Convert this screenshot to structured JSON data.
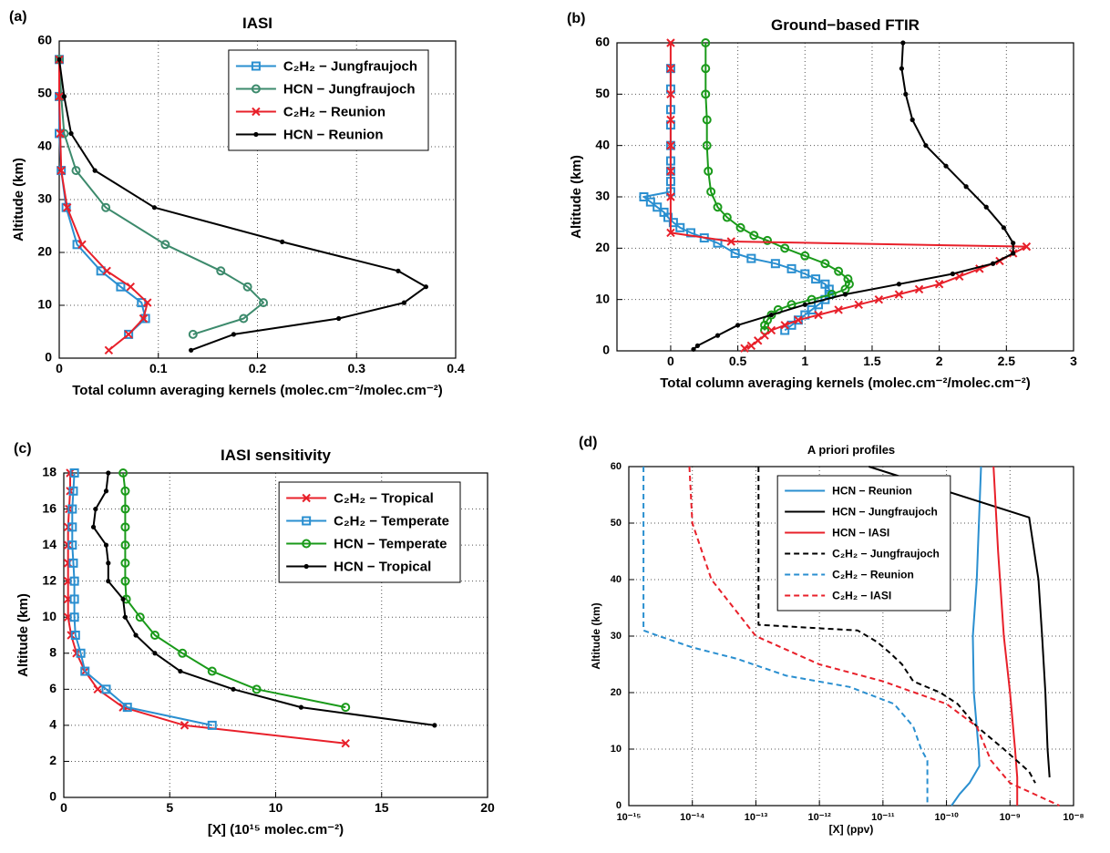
{
  "chart_data": [
    {
      "type": "line",
      "panel": "(a)",
      "title": "IASI",
      "xlabel": "Total column averaging kernels (molec.cm⁻²/molec.cm⁻²)",
      "ylabel": "Altitude (km)",
      "xlim": [
        0,
        0.4
      ],
      "xticks": [
        0,
        0.1,
        0.2,
        0.3,
        0.4
      ],
      "ylim": [
        0,
        60
      ],
      "yticks": [
        0,
        10,
        20,
        30,
        40,
        50,
        60
      ],
      "grid": true,
      "legend": "upper right",
      "series": [
        {
          "name": "C₂H₂ − Jungfraujoch",
          "color": "#2a8fd0",
          "marker": "square",
          "x": [
            0,
            0,
            0,
            0.002,
            0.007,
            0.018,
            0.042,
            0.062,
            0.083,
            0.087,
            0.07
          ],
          "y": [
            56.5,
            49.5,
            42.5,
            35.5,
            28.5,
            21.5,
            16.5,
            13.5,
            10.5,
            7.5,
            4.5
          ]
        },
        {
          "name": "HCN − Jungfraujoch",
          "color": "#3c8a6c",
          "marker": "circle",
          "x": [
            0,
            0.002,
            0.005,
            0.017,
            0.047,
            0.107,
            0.163,
            0.19,
            0.206,
            0.186,
            0.135
          ],
          "y": [
            56.5,
            49.5,
            42.5,
            35.5,
            28.5,
            21.5,
            16.5,
            13.5,
            10.5,
            7.5,
            4.5
          ]
        },
        {
          "name": "C₂H₂ − Reunion",
          "color": "#e8202a",
          "marker": "x",
          "x": [
            0,
            0,
            0.001,
            0.002,
            0.008,
            0.023,
            0.048,
            0.072,
            0.089,
            0.085,
            0.07,
            0.05
          ],
          "y": [
            56.5,
            49.5,
            42.5,
            35.5,
            28.5,
            21.5,
            16.5,
            13.5,
            10.5,
            7.5,
            4.5,
            1.5
          ]
        },
        {
          "name": "HCN − Reunion",
          "color": "#000000",
          "marker": "dot",
          "x": [
            0,
            0.005,
            0.012,
            0.036,
            0.096,
            0.225,
            0.342,
            0.37,
            0.348,
            0.282,
            0.176,
            0.133
          ],
          "y": [
            56.5,
            49.5,
            42.5,
            35.5,
            28.5,
            22,
            16.5,
            13.5,
            10.5,
            7.5,
            4.5,
            1.5
          ]
        }
      ]
    },
    {
      "type": "line",
      "panel": "(b)",
      "title": "Ground−based FTIR",
      "xlabel": "Total column averaging kernels (molec.cm⁻²/molec.cm⁻²)",
      "ylabel": "Altitude (km)",
      "xlim": [
        -0.4,
        3
      ],
      "xticks": [
        0,
        0.5,
        1,
        1.5,
        2,
        2.5,
        3
      ],
      "ylim": [
        0,
        60
      ],
      "yticks": [
        0,
        10,
        20,
        30,
        40,
        50,
        60
      ],
      "grid": true,
      "series": [
        {
          "color": "#2a8fd0",
          "marker": "square",
          "x": [
            0,
            0,
            0,
            0,
            0,
            0,
            0,
            0,
            0,
            -0.2,
            -0.15,
            -0.1,
            -0.05,
            -0.02,
            0.02,
            0.07,
            0.15,
            0.25,
            0.35,
            0.48,
            0.6,
            0.78,
            0.9,
            1.0,
            1.08,
            1.15,
            1.18,
            1.18,
            1.15,
            1.1,
            1.05,
            1.0,
            0.95,
            0.9,
            0.85
          ],
          "y": [
            55,
            51,
            47,
            44,
            40,
            37,
            35,
            33,
            31,
            30,
            29,
            28,
            27,
            26,
            25,
            24,
            23,
            22,
            21,
            19,
            18,
            17,
            16,
            15,
            14,
            13,
            12,
            11,
            10,
            9,
            8,
            7,
            6,
            5,
            4
          ]
        },
        {
          "color": "#1a9a1a",
          "marker": "circle",
          "x": [
            0.26,
            0.26,
            0.26,
            0.27,
            0.27,
            0.28,
            0.3,
            0.35,
            0.42,
            0.52,
            0.62,
            0.72,
            0.85,
            1.0,
            1.15,
            1.25,
            1.32,
            1.33,
            1.3,
            1.2,
            1.05,
            0.9,
            0.8,
            0.75,
            0.72,
            0.7,
            0.7
          ],
          "y": [
            60,
            55,
            50,
            45,
            40,
            35,
            31,
            28,
            26,
            24,
            22.5,
            21.5,
            20,
            18.5,
            17,
            15.5,
            14,
            13,
            12,
            11,
            10,
            9,
            8,
            7,
            6,
            5,
            4
          ]
        },
        {
          "color": "#e8202a",
          "marker": "x",
          "x": [
            0,
            0,
            0,
            0,
            0,
            0,
            0,
            0,
            0.45,
            2.65,
            2.55,
            2.45,
            2.3,
            2.15,
            2.0,
            1.85,
            1.7,
            1.55,
            1.4,
            1.25,
            1.1,
            0.95,
            0.85,
            0.75,
            0.7,
            0.65,
            0.6,
            0.55
          ],
          "y": [
            60,
            55,
            50,
            45,
            40,
            35,
            30,
            23,
            21.3,
            20.3,
            19,
            17.5,
            16,
            14.5,
            13,
            12,
            11,
            10,
            9,
            8,
            7,
            6,
            5,
            4,
            3,
            2,
            1,
            0.5
          ]
        },
        {
          "color": "#000000",
          "marker": "dot",
          "x": [
            1.73,
            1.72,
            1.75,
            1.8,
            1.9,
            2.05,
            2.2,
            2.35,
            2.48,
            2.55,
            2.55,
            2.4,
            2.1,
            1.7,
            1.3,
            1.0,
            0.75,
            0.5,
            0.35,
            0.2,
            0.17
          ],
          "y": [
            60,
            55,
            50,
            45,
            40,
            36,
            32,
            28,
            24,
            21,
            19,
            17,
            15,
            13,
            11,
            9,
            7,
            5,
            3,
            1,
            0.3
          ]
        }
      ]
    },
    {
      "type": "line",
      "panel": "(c)",
      "title": "IASI sensitivity",
      "xlabel": "[X] (10¹⁵ molec.cm⁻²)",
      "ylabel": "Altitude (km)",
      "xlim": [
        0,
        20
      ],
      "xticks": [
        0,
        5,
        10,
        15,
        20
      ],
      "ylim": [
        0,
        18
      ],
      "yticks": [
        0,
        2,
        4,
        6,
        8,
        10,
        12,
        14,
        16,
        18
      ],
      "grid": true,
      "legend": "upper right",
      "series": [
        {
          "name": "C₂H₂ − Tropical",
          "color": "#e8202a",
          "marker": "x",
          "x": [
            0.3,
            0.3,
            0.25,
            0.2,
            0.2,
            0.2,
            0.2,
            0.2,
            0.2,
            0.35,
            0.6,
            1.0,
            1.6,
            2.8,
            5.7,
            13.3
          ],
          "y": [
            18,
            17,
            16,
            15,
            14,
            13,
            12,
            11,
            10,
            9,
            8,
            7,
            6,
            5,
            4,
            3
          ]
        },
        {
          "name": "C₂H₂ − Temperate",
          "color": "#2a8fd0",
          "marker": "square",
          "x": [
            0.5,
            0.45,
            0.4,
            0.4,
            0.4,
            0.45,
            0.5,
            0.5,
            0.5,
            0.55,
            0.8,
            1.0,
            2.0,
            3.0,
            7.0
          ],
          "y": [
            18,
            17,
            16,
            15,
            14,
            13,
            12,
            11,
            10,
            9,
            8,
            7,
            6,
            5,
            4
          ]
        },
        {
          "name": "HCN − Temperate",
          "color": "#1a9a1a",
          "marker": "circle",
          "x": [
            2.8,
            2.9,
            2.9,
            2.9,
            2.9,
            2.9,
            2.9,
            2.95,
            3.6,
            4.3,
            5.6,
            7.0,
            9.1,
            13.3
          ],
          "y": [
            18,
            17,
            16,
            15,
            14,
            13,
            12,
            11,
            10,
            9,
            8,
            7,
            6,
            5
          ]
        },
        {
          "name": "HCN − Tropical",
          "color": "#000000",
          "marker": "dot",
          "x": [
            2.1,
            2.0,
            1.5,
            1.4,
            2.0,
            2.1,
            2.1,
            2.8,
            2.9,
            3.4,
            4.3,
            5.5,
            8.0,
            11.2,
            17.5
          ],
          "y": [
            18,
            17,
            16,
            15,
            14,
            13,
            12,
            11,
            10,
            9,
            8,
            7,
            6,
            5,
            4
          ]
        }
      ]
    },
    {
      "type": "line",
      "panel": "(d)",
      "title": "A priori profiles",
      "xlabel": "[X] (ppv)",
      "ylabel": "Altitude (km)",
      "xscale": "log",
      "xlim": [
        1e-15,
        1e-08
      ],
      "xticks": [
        {
          "value": 1e-15,
          "label": "10⁻¹⁵"
        },
        {
          "value": 1e-14,
          "label": "10⁻¹⁴"
        },
        {
          "value": 1e-13,
          "label": "10⁻¹³"
        },
        {
          "value": 1e-12,
          "label": "10⁻¹²"
        },
        {
          "value": 1e-11,
          "label": "10⁻¹¹"
        },
        {
          "value": 1e-10,
          "label": "10⁻¹⁰"
        },
        {
          "value": 1e-09,
          "label": "10⁻⁹"
        },
        {
          "value": 1e-08,
          "label": "10⁻⁸"
        }
      ],
      "ylim": [
        0,
        60
      ],
      "yticks": [
        0,
        10,
        20,
        30,
        40,
        50,
        60
      ],
      "grid": true,
      "legend": "upper center",
      "series": [
        {
          "name": "HCN − Reunion",
          "color": "#2a8fd0",
          "linestyle": "solid",
          "x": [
            3.5e-10,
            3e-10,
            2.6e-10,
            2.7e-10,
            3.2e-10,
            3.3e-10,
            2.3e-10,
            1.6e-10,
            1.2e-10
          ],
          "y": [
            60,
            40,
            30,
            20,
            10,
            7,
            4,
            2,
            0
          ]
        },
        {
          "name": "HCN − Jungfraujoch",
          "color": "#000000",
          "linestyle": "solid",
          "x": [
            6e-12,
            2e-09,
            2.8e-09,
            3.2e-09,
            3.6e-09,
            3.9e-09,
            4.2e-09
          ],
          "y": [
            60,
            51,
            40,
            30,
            20,
            10,
            5
          ]
        },
        {
          "name": "HCN − IASI",
          "color": "#e8202a",
          "linestyle": "solid",
          "x": [
            5.5e-10,
            6.5e-10,
            8e-10,
            1e-09,
            1.2e-09,
            1.3e-09,
            1.3e-09
          ],
          "y": [
            60,
            45,
            30,
            20,
            10,
            5,
            0
          ]
        },
        {
          "name": "C₂H₂ − Jungfraujoch",
          "color": "#000000",
          "linestyle": "dashed",
          "x": [
            1.1e-13,
            1.1e-13,
            4e-12,
            8e-12,
            1.3e-11,
            2e-11,
            3e-11,
            8e-11,
            1.5e-10,
            3e-10,
            8e-10,
            2e-09,
            2.5e-09
          ],
          "y": [
            60,
            32,
            31,
            29,
            27,
            25,
            22,
            20,
            18,
            14,
            10,
            6,
            4
          ]
        },
        {
          "name": "C₂H₂ − Reunion",
          "color": "#2a8fd0",
          "linestyle": "dashed",
          "x": [
            1.7e-15,
            1.7e-15,
            3e-15,
            1e-14,
            5e-14,
            3e-13,
            3e-12,
            1.5e-11,
            3e-11,
            4e-11,
            5e-11,
            5e-11
          ],
          "y": [
            60,
            31,
            30,
            28,
            26,
            23,
            21,
            18,
            14,
            10,
            8,
            0
          ]
        },
        {
          "name": "C₂H₂ − IASI",
          "color": "#e8202a",
          "linestyle": "dashed",
          "x": [
            9e-15,
            1e-14,
            2e-14,
            1e-13,
            1e-12,
            1e-11,
            1e-10,
            3e-10,
            5e-10,
            1e-09,
            6e-09
          ],
          "y": [
            60,
            50,
            40,
            30,
            25,
            22,
            18,
            14,
            8,
            4,
            0
          ]
        }
      ]
    }
  ]
}
